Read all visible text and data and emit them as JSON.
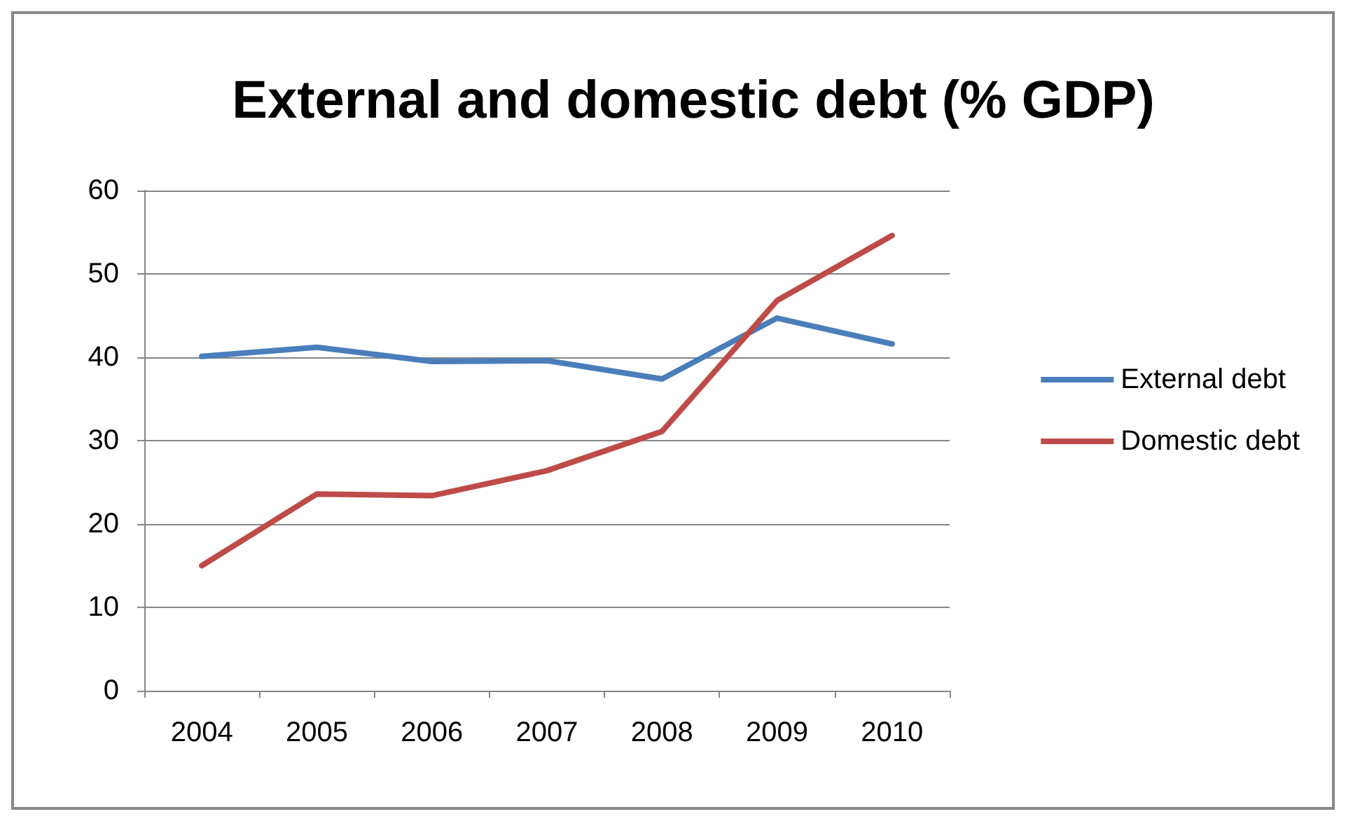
{
  "chart_data": {
    "type": "line",
    "title": "External and domestic debt (% GDP)",
    "categories": [
      "2004",
      "2005",
      "2006",
      "2007",
      "2008",
      "2009",
      "2010"
    ],
    "series": [
      {
        "name": "External debt",
        "color": "#4a7ebb",
        "values": [
          40.1,
          41.2,
          39.5,
          39.6,
          37.4,
          44.7,
          41.6
        ]
      },
      {
        "name": "Domestic debt",
        "color": "#be4b48",
        "values": [
          15.0,
          23.6,
          23.4,
          26.4,
          31.1,
          46.8,
          54.6
        ]
      }
    ],
    "ylim": [
      0,
      60
    ],
    "yticks": [
      0,
      10,
      20,
      30,
      40,
      50,
      60
    ],
    "grid": "y",
    "legend": "right",
    "marker": "none",
    "line_style": "solid"
  }
}
